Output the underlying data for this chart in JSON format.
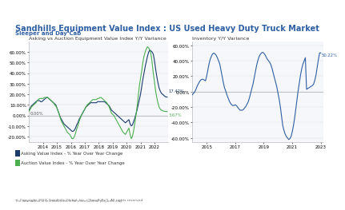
{
  "title": "Sandhills Equipment Value Index : US Used Heavy Duty Truck Market",
  "subtitle": "Sleeper and Day Cab",
  "title_color": "#2e5fa3",
  "header_bg": "#5b8db8",
  "left_chart_title": "Asking vs Auction Equipment Value Index Y/Y Variance",
  "right_chart_title": "Inventory Y/Y Variance",
  "left_asking_label": "Asking Value Index - % Year Over Year Change",
  "left_auction_label": "Auction Value Index - % Year Over Year Change",
  "left_asking_color": "#1a3a6b",
  "left_auction_color": "#4caf50",
  "right_color": "#2e5fa3",
  "legend_fontsize": 4.0,
  "tick_fontsize": 4.0,
  "title_fontsize": 7.0,
  "subtitle_fontsize": 5.0,
  "chart_title_fontsize": 4.5,
  "annotation_fontsize": 3.8,
  "bg_color": "#ffffff",
  "plot_bg": "#f5f7fa",
  "grid_color": "#cccccc",
  "left_ylim": [
    -0.25,
    0.7
  ],
  "right_ylim": [
    -0.65,
    0.65
  ],
  "left_yticks": [
    -0.2,
    -0.1,
    0.0,
    0.1,
    0.2,
    0.3,
    0.4,
    0.5,
    0.6
  ],
  "right_yticks": [
    -0.6,
    -0.4,
    -0.2,
    0.0,
    0.2,
    0.4,
    0.6
  ],
  "left_asking_end_label": "17.42%",
  "left_auction_end_label": "3.67%",
  "right_end_label": "50.22%",
  "left_zero_label": "0.00%",
  "right_zero_label": "0.00%"
}
